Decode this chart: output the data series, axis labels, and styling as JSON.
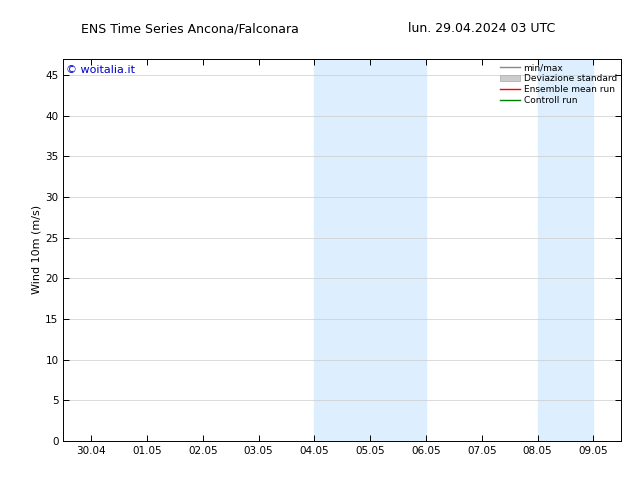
{
  "title_left": "ENS Time Series Ancona/Falconara",
  "title_right": "lun. 29.04.2024 03 UTC",
  "ylabel": "Wind 10m (m/s)",
  "watermark": "© woitalia.it",
  "xtick_labels": [
    "30.04",
    "01.05",
    "02.05",
    "03.05",
    "04.05",
    "05.05",
    "06.05",
    "07.05",
    "08.05",
    "09.05"
  ],
  "xtick_positions": [
    0,
    1,
    2,
    3,
    4,
    5,
    6,
    7,
    8,
    9
  ],
  "ylim": [
    0,
    47
  ],
  "ytick_positions": [
    0,
    5,
    10,
    15,
    20,
    25,
    30,
    35,
    40,
    45
  ],
  "ytick_labels": [
    "0",
    "5",
    "10",
    "15",
    "20",
    "25",
    "30",
    "35",
    "40",
    "45"
  ],
  "shaded_pairs": [
    {
      "x_start": 4,
      "x_end": 5
    },
    {
      "x_start": 5,
      "x_end": 6
    },
    {
      "x_start": 8,
      "x_end": 8.5
    },
    {
      "x_start": 8.5,
      "x_end": 9
    }
  ],
  "shade_color": "#ddeeff",
  "legend_entries": [
    {
      "label": "min/max",
      "color": "#888888",
      "lw": 1.0,
      "linestyle": "-"
    },
    {
      "label": "Deviazione standard",
      "color": "#cccccc",
      "lw": 5,
      "linestyle": "-"
    },
    {
      "label": "Ensemble mean run",
      "color": "red",
      "lw": 1.0,
      "linestyle": "-"
    },
    {
      "label": "Controll run",
      "color": "green",
      "lw": 1.0,
      "linestyle": "-"
    }
  ],
  "bg_color": "#ffffff",
  "plot_bg_color": "#ffffff",
  "title_fontsize": 9,
  "axis_label_fontsize": 8,
  "tick_fontsize": 7.5,
  "watermark_color": "#0000cc",
  "watermark_fontsize": 8
}
